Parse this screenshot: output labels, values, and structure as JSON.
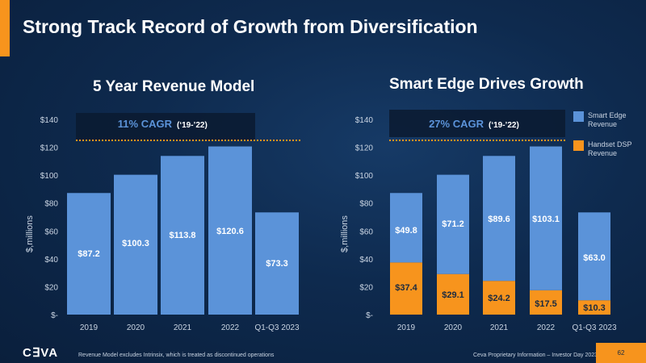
{
  "title": "Strong Track Record of Growth from Diversification",
  "footer": {
    "logo": "CEVA",
    "note": "Revenue Model excludes Intrinsix, which is treated as discontinued operations",
    "info": "Ceva Proprietary Information – Investor Day 2023",
    "page": "62"
  },
  "colors": {
    "blue": "#5b93d9",
    "orange": "#f7941d",
    "background": "#0e2a4e"
  },
  "chart_data": [
    {
      "type": "bar",
      "title": "5 Year Revenue Model",
      "ylabel": "$,millions",
      "ylim": [
        0,
        140
      ],
      "yticks": [
        "$-",
        "$20",
        "$40",
        "$60",
        "$80",
        "$100",
        "$120",
        "$140"
      ],
      "categories": [
        "2019",
        "2020",
        "2021",
        "2022",
        "Q1-Q3 2023"
      ],
      "values": [
        87.2,
        100.3,
        113.8,
        120.6,
        73.3
      ],
      "labels": [
        "$87.2",
        "$100.3",
        "$113.8",
        "$120.6",
        "$73.3"
      ],
      "annotation": {
        "cagr": "11% CAGR",
        "period": "(‘19-’22)"
      }
    },
    {
      "type": "bar",
      "stacked": true,
      "title": "Smart Edge Drives Growth",
      "ylabel": "$,millions",
      "ylim": [
        0,
        140
      ],
      "yticks": [
        "$-",
        "$20",
        "$40",
        "$60",
        "$80",
        "$100",
        "$120",
        "$140"
      ],
      "categories": [
        "2019",
        "2020",
        "2021",
        "2022",
        "Q1-Q3 2023"
      ],
      "series": [
        {
          "name": "Handset DSP Revenue",
          "color": "#f7941d",
          "values": [
            37.4,
            29.1,
            24.2,
            17.5,
            10.3
          ],
          "labels": [
            "$37.4",
            "$29.1",
            "$24.2",
            "$17.5",
            "$10.3"
          ]
        },
        {
          "name": "Smart Edge Revenue",
          "color": "#5b93d9",
          "values": [
            49.8,
            71.2,
            89.6,
            103.1,
            63.0
          ],
          "labels": [
            "$49.8",
            "$71.2",
            "$89.6",
            "$103.1",
            "$63.0"
          ]
        }
      ],
      "legend": {
        "placement": "right",
        "items": [
          "Smart Edge Revenue",
          "Handset DSP Revenue"
        ]
      },
      "annotation": {
        "cagr": "27% CAGR",
        "period": "(‘19-’22)"
      }
    }
  ]
}
